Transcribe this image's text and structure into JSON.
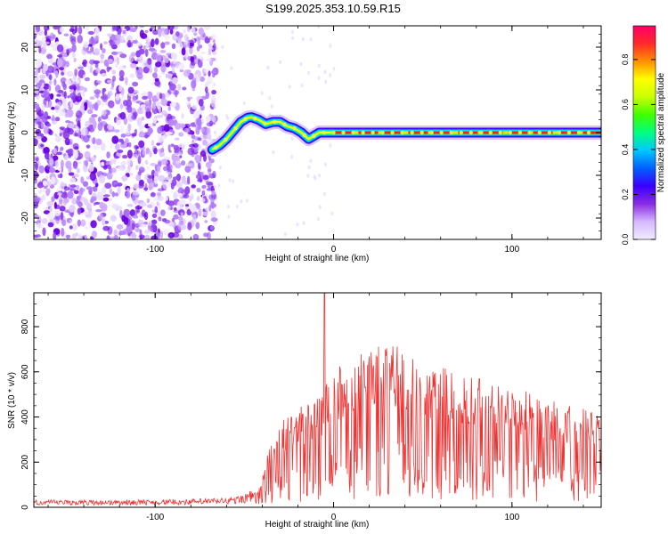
{
  "figure": {
    "title": "S199.2025.353.10.59.R15"
  },
  "chart_data": [
    {
      "type": "heatmap",
      "xlabel": "Height of straight line (km)",
      "ylabel": "Frequency (Hz)",
      "xlim": [
        -168,
        150
      ],
      "ylim": [
        -25,
        25
      ],
      "xticks": [
        -100,
        0,
        100
      ],
      "yticks": [
        -20,
        -10,
        0,
        10,
        20
      ],
      "grid": false,
      "colorbar": {
        "label": "Normalized spectral amplitude",
        "range": [
          0,
          0.95
        ],
        "ticks": [
          0.0,
          0.2,
          0.4,
          0.6,
          0.8
        ],
        "colors": [
          "#f2ecff",
          "#d6b8ff",
          "#8a2be2",
          "#3a00ff",
          "#0060ff",
          "#00c8ff",
          "#00ff80",
          "#40ff00",
          "#c8ff00",
          "#ffff00",
          "#ff9000",
          "#ff2a2a",
          "#ff0066"
        ]
      },
      "ridge": {
        "x": [
          -68,
          -64,
          -60,
          -56,
          -52,
          -48,
          -46,
          -42,
          -38,
          -34,
          -30,
          -26,
          -22,
          -18,
          -14,
          -12,
          -8,
          -4,
          0,
          10,
          30,
          50,
          70,
          90,
          110,
          130,
          150
        ],
        "y": [
          -4,
          -3,
          -1.5,
          0.5,
          2.5,
          3.5,
          3.6,
          3,
          2,
          2.5,
          2.5,
          1.5,
          1,
          0,
          -1.5,
          -1,
          0,
          0,
          0,
          0,
          0,
          0,
          0,
          0,
          0,
          0,
          0
        ]
      },
      "noise_region": [
        -168,
        -68
      ]
    },
    {
      "type": "line",
      "xlabel": "Height of straight line (km)",
      "ylabel": "SNR (10 * v/v)",
      "xlim": [
        -168,
        150
      ],
      "ylim": [
        0,
        950
      ],
      "xticks": [
        -100,
        0,
        100
      ],
      "yticks": [
        0,
        200,
        400,
        600,
        800
      ],
      "grid": false,
      "series": [
        {
          "color": "#ee3333",
          "envelope": {
            "x": [
              -168,
              -120,
              -80,
              -55,
              -45,
              -40,
              -38,
              -35,
              -30,
              -25,
              -20,
              -15,
              -12,
              -10,
              -6,
              -2,
              2,
              6,
              10,
              15,
              20,
              25,
              30,
              35,
              40,
              45,
              50,
              60,
              70,
              80,
              90,
              100,
              105,
              110,
              115,
              120,
              130,
              140,
              150
            ],
            "y": [
              25,
              25,
              28,
              35,
              60,
              120,
              220,
              300,
              380,
              420,
              450,
              460,
              470,
              480,
              520,
              580,
              620,
              640,
              660,
              680,
              700,
              720,
              740,
              740,
              720,
              690,
              660,
              640,
              610,
              590,
              570,
              550,
              530,
              510,
              490,
              480,
              460,
              440,
              410
            ]
          },
          "spike": {
            "x": -5,
            "y": 950
          }
        }
      ]
    }
  ]
}
